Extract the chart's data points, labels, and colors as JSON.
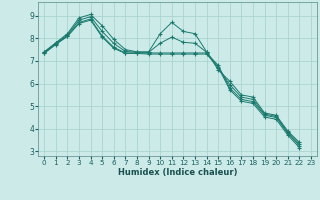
{
  "xlabel": "Humidex (Indice chaleur)",
  "background_color": "#cceae8",
  "grid_color": "#aad4d0",
  "line_color": "#1a7a6e",
  "xlim": [
    -0.5,
    23.5
  ],
  "ylim": [
    2.8,
    9.6
  ],
  "yticks": [
    3,
    4,
    5,
    6,
    7,
    8,
    9
  ],
  "xticks": [
    0,
    1,
    2,
    3,
    4,
    5,
    6,
    7,
    8,
    9,
    10,
    11,
    12,
    13,
    14,
    15,
    16,
    17,
    18,
    19,
    20,
    21,
    22,
    23
  ],
  "series": [
    {
      "x": [
        0,
        1,
        2,
        3,
        4,
        5,
        6,
        7,
        8,
        9,
        10,
        11,
        12,
        13,
        14,
        15,
        16,
        17,
        18,
        19,
        20,
        21,
        22,
        23
      ],
      "y": [
        7.4,
        7.8,
        8.2,
        8.9,
        9.05,
        8.55,
        7.95,
        7.5,
        7.4,
        7.4,
        8.2,
        8.7,
        8.3,
        8.2,
        7.4,
        6.6,
        6.1,
        5.5,
        5.4,
        4.7,
        4.6,
        3.9,
        3.4,
        null
      ]
    },
    {
      "x": [
        0,
        1,
        2,
        3,
        4,
        5,
        6,
        7,
        8,
        9,
        10,
        11,
        12,
        13,
        14,
        15,
        16,
        17,
        18,
        19,
        20,
        21,
        22,
        23
      ],
      "y": [
        7.35,
        7.75,
        8.1,
        8.7,
        8.85,
        8.1,
        7.6,
        7.35,
        7.35,
        7.35,
        7.35,
        7.35,
        7.35,
        7.35,
        7.35,
        6.8,
        5.8,
        5.3,
        5.2,
        4.6,
        4.5,
        3.8,
        3.25,
        null
      ]
    },
    {
      "x": [
        0,
        1,
        2,
        3,
        4,
        5,
        6,
        7,
        8,
        9,
        10,
        11,
        12,
        13,
        14,
        15,
        16,
        17,
        18,
        19,
        20,
        21,
        22,
        23
      ],
      "y": [
        7.38,
        7.78,
        8.15,
        8.8,
        8.95,
        8.3,
        7.77,
        7.42,
        7.38,
        7.38,
        7.78,
        8.05,
        7.82,
        7.78,
        7.38,
        6.7,
        5.95,
        5.4,
        5.3,
        4.65,
        4.55,
        3.85,
        3.32,
        null
      ]
    },
    {
      "x": [
        0,
        1,
        2,
        3,
        4,
        5,
        6,
        7,
        8,
        9,
        10,
        11,
        12,
        13,
        14,
        15,
        16,
        17,
        18,
        19,
        20,
        21,
        22,
        23
      ],
      "y": [
        7.33,
        7.72,
        8.08,
        8.65,
        8.8,
        8.05,
        7.55,
        7.33,
        7.33,
        7.3,
        7.3,
        7.3,
        7.3,
        7.3,
        7.3,
        6.72,
        5.72,
        5.22,
        5.12,
        4.52,
        4.42,
        3.72,
        3.17,
        null
      ]
    }
  ]
}
